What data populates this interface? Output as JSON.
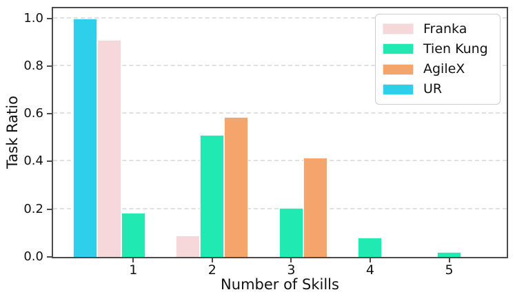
{
  "chart_data": {
    "type": "bar",
    "title": "",
    "xlabel": "Number of Skills",
    "ylabel": "Task Ratio",
    "categories": [
      "1",
      "2",
      "3",
      "4",
      "5"
    ],
    "series": [
      {
        "name": "Franka",
        "color": "#f6d8db",
        "offset": -1,
        "values": [
          0.91,
          0.09,
          0,
          0,
          0
        ]
      },
      {
        "name": "Tien Kung",
        "color": "#20e9b2",
        "offset": 0,
        "values": [
          0.184,
          0.51,
          0.204,
          0.082,
          0.02
        ]
      },
      {
        "name": "AgileX",
        "color": "#f5a46b",
        "offset": 1,
        "values": [
          0,
          0.585,
          0.415,
          0,
          0
        ]
      },
      {
        "name": "UR",
        "color": "#2dcfea",
        "offset": -2,
        "values": [
          1.0,
          0,
          0,
          0,
          0
        ]
      }
    ],
    "ylim": [
      0.0,
      1.053
    ],
    "yticks": [
      "0.0",
      "0.2",
      "0.4",
      "0.6",
      "0.8",
      "1.0"
    ],
    "grid": {
      "axis": "y",
      "style": "dashed",
      "color": "#e0e0e0"
    },
    "legend": {
      "position": "upper right",
      "labels": [
        "Franka",
        "Tien Kung",
        "AgileX",
        "UR"
      ]
    },
    "spine_color": "#4a4a4a",
    "background": "#ffffff"
  }
}
